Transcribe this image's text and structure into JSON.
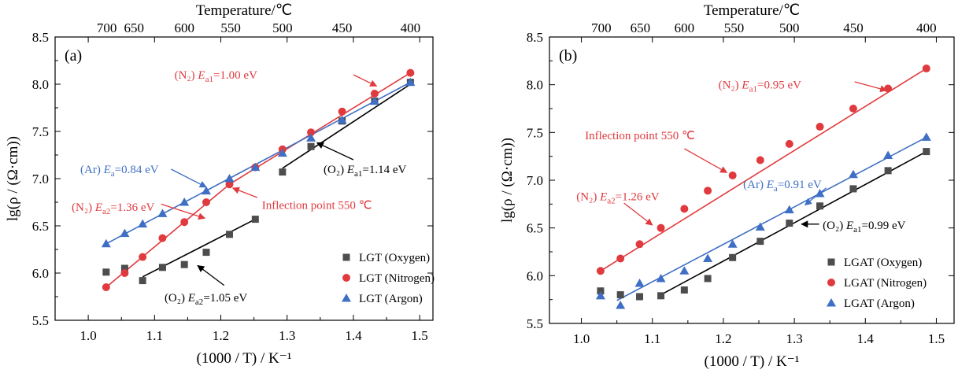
{
  "chart_data": [
    {
      "type": "scatter",
      "panel_label": "(a)",
      "xlabel": "(1000 / T) / K⁻¹",
      "ylabel": "lg(ρ / (Ω·cm))",
      "top_axis_label": "Temperature/℃",
      "xlim": [
        0.95,
        1.52
      ],
      "ylim": [
        5.5,
        8.5
      ],
      "x_ticks": [
        "1.0",
        "1.1",
        "1.2",
        "1.3",
        "1.4",
        "1.5"
      ],
      "y_ticks": [
        "5.5",
        "6.0",
        "6.5",
        "7.0",
        "7.5",
        "8.0",
        "8.5"
      ],
      "top_ticks": [
        "700",
        "650",
        "600",
        "550",
        "500",
        "450",
        "400"
      ],
      "legend_position": "bottom-right",
      "series": [
        {
          "name": "LGT (Oxygen)",
          "marker": "square",
          "color": "#4d4d4d",
          "points": [
            [
              1.027,
              6.01
            ],
            [
              1.055,
              6.05
            ],
            [
              1.082,
              5.92
            ],
            [
              1.112,
              6.06
            ],
            [
              1.145,
              6.09
            ],
            [
              1.178,
              6.22
            ],
            [
              1.213,
              6.41
            ],
            [
              1.252,
              6.57
            ],
            [
              1.293,
              7.07
            ],
            [
              1.336,
              7.34
            ],
            [
              1.383,
              7.61
            ],
            [
              1.432,
              7.82
            ],
            [
              1.486,
              8.02
            ]
          ]
        },
        {
          "name": "LGT (Nitrogen)",
          "marker": "circle",
          "color": "#e03a3e",
          "points": [
            [
              1.027,
              5.85
            ],
            [
              1.055,
              6.0
            ],
            [
              1.082,
              6.17
            ],
            [
              1.112,
              6.37
            ],
            [
              1.145,
              6.54
            ],
            [
              1.178,
              6.75
            ],
            [
              1.213,
              6.94
            ],
            [
              1.252,
              7.12
            ],
            [
              1.293,
              7.31
            ],
            [
              1.336,
              7.49
            ],
            [
              1.383,
              7.71
            ],
            [
              1.432,
              7.9
            ],
            [
              1.486,
              8.12
            ]
          ]
        },
        {
          "name": "LGT (Argon)",
          "marker": "triangle",
          "color": "#3f6fc4",
          "points": [
            [
              1.027,
              6.31
            ],
            [
              1.055,
              6.42
            ],
            [
              1.082,
              6.52
            ],
            [
              1.112,
              6.63
            ],
            [
              1.145,
              6.75
            ],
            [
              1.178,
              6.87
            ],
            [
              1.213,
              7.0
            ],
            [
              1.252,
              7.12
            ],
            [
              1.293,
              7.27
            ],
            [
              1.336,
              7.43
            ],
            [
              1.383,
              7.62
            ],
            [
              1.432,
              7.82
            ],
            [
              1.486,
              8.02
            ]
          ]
        }
      ],
      "fit_lines": [
        {
          "color": "#e03a3e",
          "from": [
            1.027,
            5.85
          ],
          "to": [
            1.213,
            6.94
          ]
        },
        {
          "color": "#e03a3e",
          "from": [
            1.213,
            6.94
          ],
          "to": [
            1.486,
            8.12
          ]
        },
        {
          "color": "#3f6fc4",
          "from": [
            1.027,
            6.31
          ],
          "to": [
            1.486,
            8.02
          ]
        },
        {
          "color": "#000000",
          "from": [
            1.293,
            7.11
          ],
          "to": [
            1.486,
            8.0
          ]
        },
        {
          "color": "#000000",
          "from": [
            1.082,
            5.96
          ],
          "to": [
            1.252,
            6.57
          ]
        }
      ],
      "annotations": [
        {
          "color": "#e03a3e",
          "prefix": "(N₂) ",
          "E": "E",
          "sub": "a1",
          "value": "=1.00 eV",
          "text_at": [
            1.13,
            8.1
          ],
          "arrow_from": [
            1.4,
            8.1
          ],
          "arrow_to": [
            1.435,
            7.98
          ]
        },
        {
          "color": "#000000",
          "prefix": "(O₂) ",
          "E": "E",
          "sub": "a1",
          "value": "=1.14 eV",
          "text_at": [
            1.355,
            7.1
          ],
          "arrow_from": [
            1.4,
            7.2
          ],
          "arrow_to": [
            1.345,
            7.38
          ]
        },
        {
          "color": "#3f6fc4",
          "prefix": "(Ar) ",
          "E": "E",
          "sub": "a",
          "value": "=0.84 eV",
          "text_at": [
            0.988,
            7.1
          ],
          "arrow_from": [
            1.125,
            7.1
          ],
          "arrow_to": [
            1.178,
            6.91
          ]
        },
        {
          "color": "#e03a3e",
          "prefix": "(N₂) ",
          "E": "E",
          "sub": "a2",
          "value": "=1.36 eV",
          "text_at": [
            0.975,
            6.7
          ],
          "arrow_from": [
            1.11,
            6.73
          ],
          "arrow_to": [
            1.176,
            6.58
          ]
        },
        {
          "color": "#e03a3e",
          "prefix": "",
          "E": "",
          "sub": "",
          "value": "Inflection point 550 ℃",
          "text_at": [
            1.262,
            6.72
          ],
          "arrow_from": [
            1.255,
            6.8
          ],
          "arrow_to": [
            1.218,
            6.9
          ]
        },
        {
          "color": "#000000",
          "prefix": "(O₂) ",
          "E": "E",
          "sub": "a2",
          "value": "=1.05 eV",
          "text_at": [
            1.115,
            5.74
          ],
          "arrow_from": [
            1.205,
            5.87
          ],
          "arrow_to": [
            1.165,
            6.08
          ]
        }
      ]
    },
    {
      "type": "scatter",
      "panel_label": "(b)",
      "xlabel": "(1000 / T) / K⁻¹",
      "ylabel": "lg(ρ / (Ω·cm))",
      "top_axis_label": "Temperature/℃",
      "xlim": [
        0.955,
        1.525
      ],
      "ylim": [
        5.5,
        8.5
      ],
      "x_ticks": [
        "1.0",
        "1.1",
        "1.2",
        "1.3",
        "1.4",
        "1.5"
      ],
      "y_ticks": [
        "5.5",
        "6.0",
        "6.5",
        "7.0",
        "7.5",
        "8.0",
        "8.5"
      ],
      "top_ticks": [
        "700",
        "650",
        "600",
        "550",
        "500",
        "450",
        "400"
      ],
      "legend_position": "bottom-right",
      "series": [
        {
          "name": "LGAT (Oxygen)",
          "marker": "square",
          "color": "#4d4d4d",
          "points": [
            [
              1.027,
              5.84
            ],
            [
              1.055,
              5.8
            ],
            [
              1.082,
              5.78
            ],
            [
              1.112,
              5.79
            ],
            [
              1.145,
              5.85
            ],
            [
              1.178,
              5.97
            ],
            [
              1.213,
              6.19
            ],
            [
              1.252,
              6.36
            ],
            [
              1.293,
              6.55
            ],
            [
              1.336,
              6.73
            ],
            [
              1.383,
              6.91
            ],
            [
              1.432,
              7.1
            ],
            [
              1.486,
              7.3
            ]
          ]
        },
        {
          "name": "LGAT (Nitrogen)",
          "marker": "circle",
          "color": "#e03a3e",
          "points": [
            [
              1.027,
              6.05
            ],
            [
              1.055,
              6.18
            ],
            [
              1.082,
              6.33
            ],
            [
              1.112,
              6.5
            ],
            [
              1.145,
              6.7
            ],
            [
              1.178,
              6.89
            ],
            [
              1.213,
              7.05
            ],
            [
              1.252,
              7.21
            ],
            [
              1.293,
              7.38
            ],
            [
              1.336,
              7.56
            ],
            [
              1.383,
              7.75
            ],
            [
              1.432,
              7.96
            ],
            [
              1.486,
              8.17
            ]
          ]
        },
        {
          "name": "LGAT (Argon)",
          "marker": "triangle",
          "color": "#3f6fc4",
          "points": [
            [
              1.027,
              5.79
            ],
            [
              1.055,
              5.69
            ],
            [
              1.082,
              5.92
            ],
            [
              1.112,
              5.97
            ],
            [
              1.145,
              6.05
            ],
            [
              1.178,
              6.18
            ],
            [
              1.213,
              6.33
            ],
            [
              1.252,
              6.51
            ],
            [
              1.293,
              6.69
            ],
            [
              1.336,
              6.86
            ],
            [
              1.383,
              7.06
            ],
            [
              1.432,
              7.26
            ],
            [
              1.486,
              7.45
            ]
          ]
        }
      ],
      "fit_lines": [
        {
          "color": "#e03a3e",
          "from": [
            1.027,
            6.05
          ],
          "to": [
            1.486,
            8.17
          ]
        },
        {
          "color": "#3f6fc4",
          "from": [
            1.05,
            5.74
          ],
          "to": [
            1.486,
            7.45
          ]
        },
        {
          "color": "#000000",
          "from": [
            1.112,
            5.8
          ],
          "to": [
            1.486,
            7.3
          ]
        }
      ],
      "annotations": [
        {
          "color": "#e03a3e",
          "prefix": "(N₂) ",
          "E": "E",
          "sub": "a1",
          "value": "=0.95 eV",
          "text_at": [
            1.193,
            8.0
          ],
          "arrow_from": [
            1.385,
            8.03
          ],
          "arrow_to": [
            1.43,
            7.94
          ]
        },
        {
          "color": "#e03a3e",
          "prefix": "",
          "E": "",
          "sub": "",
          "value": "Inflection point 550 ℃",
          "text_at": [
            1.005,
            7.47
          ],
          "arrow_from": [
            1.145,
            7.33
          ],
          "arrow_to": [
            1.205,
            7.08
          ]
        },
        {
          "color": "#3f6fc4",
          "prefix": "(Ar) ",
          "E": "E",
          "sub": "a",
          "value": "=0.91 eV",
          "text_at": [
            1.228,
            6.96
          ],
          "arrow_from": [
            1.345,
            6.92
          ],
          "arrow_to": [
            1.315,
            6.74
          ]
        },
        {
          "color": "#e03a3e",
          "prefix": "(N₂) ",
          "E": "E",
          "sub": "a2",
          "value": "=1.26 eV",
          "text_at": [
            0.993,
            6.83
          ],
          "arrow_from": [
            1.06,
            6.76
          ],
          "arrow_to": [
            1.1,
            6.53
          ]
        },
        {
          "color": "#000000",
          "prefix": "(O₂) ",
          "E": "E",
          "sub": "a1",
          "value": "=0.99 eV",
          "text_at": [
            1.34,
            6.53
          ],
          "arrow_from": [
            1.335,
            6.54
          ],
          "arrow_to": [
            1.31,
            6.54
          ]
        }
      ]
    }
  ]
}
